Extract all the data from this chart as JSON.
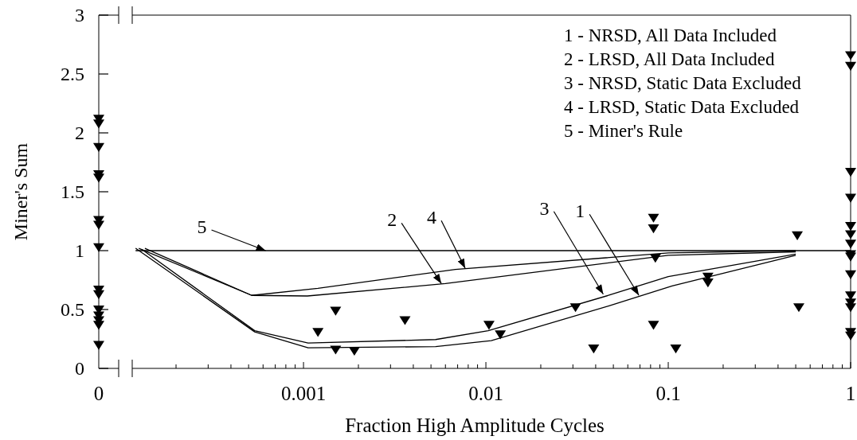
{
  "chart_data": [
    {
      "type": "scatter",
      "ylabel": "Miner's Sum",
      "categories": [
        "0"
      ],
      "ylim": [
        0,
        3
      ],
      "yticks": [
        0,
        0.5,
        1,
        1.5,
        2,
        2.5,
        3
      ],
      "grid": false,
      "series": [
        {
          "marker": "triangle",
          "color": "#000000",
          "x": [
            "0",
            "0",
            "0",
            "0",
            "0",
            "0",
            "0",
            "0",
            "0",
            "0",
            "0",
            "0",
            "0",
            "0",
            "0"
          ],
          "values": [
            2.12,
            2.08,
            1.88,
            1.65,
            1.62,
            1.26,
            1.22,
            1.03,
            0.67,
            0.63,
            0.5,
            0.45,
            0.41,
            0.37,
            0.2
          ]
        }
      ]
    },
    {
      "type": "line",
      "xlabel": "Fraction High Amplitude Cycles",
      "log": "x",
      "xlim": [
        0.000115,
        1
      ],
      "xticks": [
        {
          "value": 0.0002,
          "label": null
        },
        {
          "value": 0.0003,
          "label": null
        },
        {
          "value": 0.0004,
          "label": null
        },
        {
          "value": 0.0005,
          "label": null
        },
        {
          "value": 0.0006,
          "label": null
        },
        {
          "value": 0.0007,
          "label": null
        },
        {
          "value": 0.0008,
          "label": null
        },
        {
          "value": 0.0009,
          "label": null
        },
        0.001,
        {
          "value": 0.002,
          "label": null
        },
        {
          "value": 0.003,
          "label": null
        },
        {
          "value": 0.004,
          "label": null
        },
        {
          "value": 0.005,
          "label": null
        },
        {
          "value": 0.006,
          "label": null
        },
        {
          "value": 0.007,
          "label": null
        },
        {
          "value": 0.008,
          "label": null
        },
        {
          "value": 0.009,
          "label": null
        },
        0.01,
        {
          "value": 0.02,
          "label": null
        },
        {
          "value": 0.03,
          "label": null
        },
        {
          "value": 0.04,
          "label": null
        },
        {
          "value": 0.05,
          "label": null
        },
        {
          "value": 0.06,
          "label": null
        },
        {
          "value": 0.07,
          "label": null
        },
        {
          "value": 0.08,
          "label": null
        },
        {
          "value": 0.09,
          "label": null
        },
        0.1,
        {
          "value": 0.2,
          "label": null
        },
        {
          "value": 0.3,
          "label": null
        },
        {
          "value": 0.4,
          "label": null
        },
        {
          "value": 0.5,
          "label": null
        },
        {
          "value": 0.6,
          "label": null
        },
        {
          "value": 0.7,
          "label": null
        },
        {
          "value": 0.8,
          "label": null
        },
        {
          "value": 0.9,
          "label": null
        },
        1
      ],
      "ylim": [
        0,
        3
      ],
      "tick_labels": "x",
      "grid": false,
      "annotations": [
        "1 - NRSD, All Data Included",
        "2 - LRSD, All Data Included",
        "3 - NRSD, Static Data Excluded",
        "4 - LRSD, Static Data Excluded",
        "5 - Miner's Rule",
        {
          "text": "5",
          "x": 0.00062,
          "y": 1
        },
        {
          "text": "2",
          "x": 0.0057,
          "y": 0.72
        },
        {
          "text": "4",
          "x": 0.0077,
          "y": 0.85
        },
        {
          "text": "3",
          "x": 0.044,
          "y": 0.63
        },
        {
          "text": "1",
          "x": 0.069,
          "y": 0.62
        }
      ],
      "series": [
        {
          "color": "#000000",
          "x": [
            0.00012,
            0.00054,
            0.00106,
            0.0053,
            0.0107,
            0.047,
            0.105,
            0.5
          ],
          "values": [
            1.02,
            0.31,
            0.175,
            0.185,
            0.235,
            0.53,
            0.7,
            0.96
          ]
        },
        {
          "color": "#000000",
          "x": [
            0.000125,
            0.00052,
            0.00105,
            0.006,
            0.1,
            0.5
          ],
          "values": [
            1.02,
            0.62,
            0.615,
            0.72,
            0.96,
            0.99
          ]
        },
        {
          "color": "#000000",
          "x": [
            0.00013,
            0.00054,
            0.00106,
            0.0053,
            0.0103,
            0.047,
            0.1,
            0.5
          ],
          "values": [
            1.01,
            0.32,
            0.215,
            0.245,
            0.32,
            0.62,
            0.78,
            0.97
          ]
        },
        {
          "color": "#000000",
          "x": [
            0.000135,
            0.00052,
            0.0012,
            0.0068,
            0.1,
            0.5
          ],
          "values": [
            1.02,
            0.62,
            0.68,
            0.84,
            0.98,
            1.0
          ]
        },
        {
          "color": "#000000",
          "x": [
            0.00012,
            1
          ],
          "values": [
            1,
            1
          ]
        },
        {
          "type": "scatter",
          "marker": "triangle",
          "color": "#000000",
          "x": [
            0.0012,
            0.0015,
            0.0015,
            0.0019,
            0.0036,
            0.0104,
            0.012,
            0.031,
            0.039,
            0.083,
            0.083,
            0.085,
            0.083,
            0.11,
            0.165,
            0.165,
            0.51,
            0.52,
            1,
            1,
            1,
            1,
            1,
            1,
            1,
            1,
            1,
            1,
            1,
            1,
            1,
            1,
            1
          ],
          "values": [
            0.31,
            0.49,
            0.16,
            0.15,
            0.41,
            0.37,
            0.29,
            0.52,
            0.17,
            1.28,
            1.19,
            0.94,
            0.37,
            0.17,
            0.78,
            0.73,
            1.13,
            0.52,
            2.66,
            2.57,
            1.67,
            1.45,
            1.21,
            1.14,
            1.06,
            0.97,
            0.95,
            0.8,
            0.62,
            0.56,
            0.52,
            0.31,
            0.28
          ]
        }
      ]
    }
  ]
}
